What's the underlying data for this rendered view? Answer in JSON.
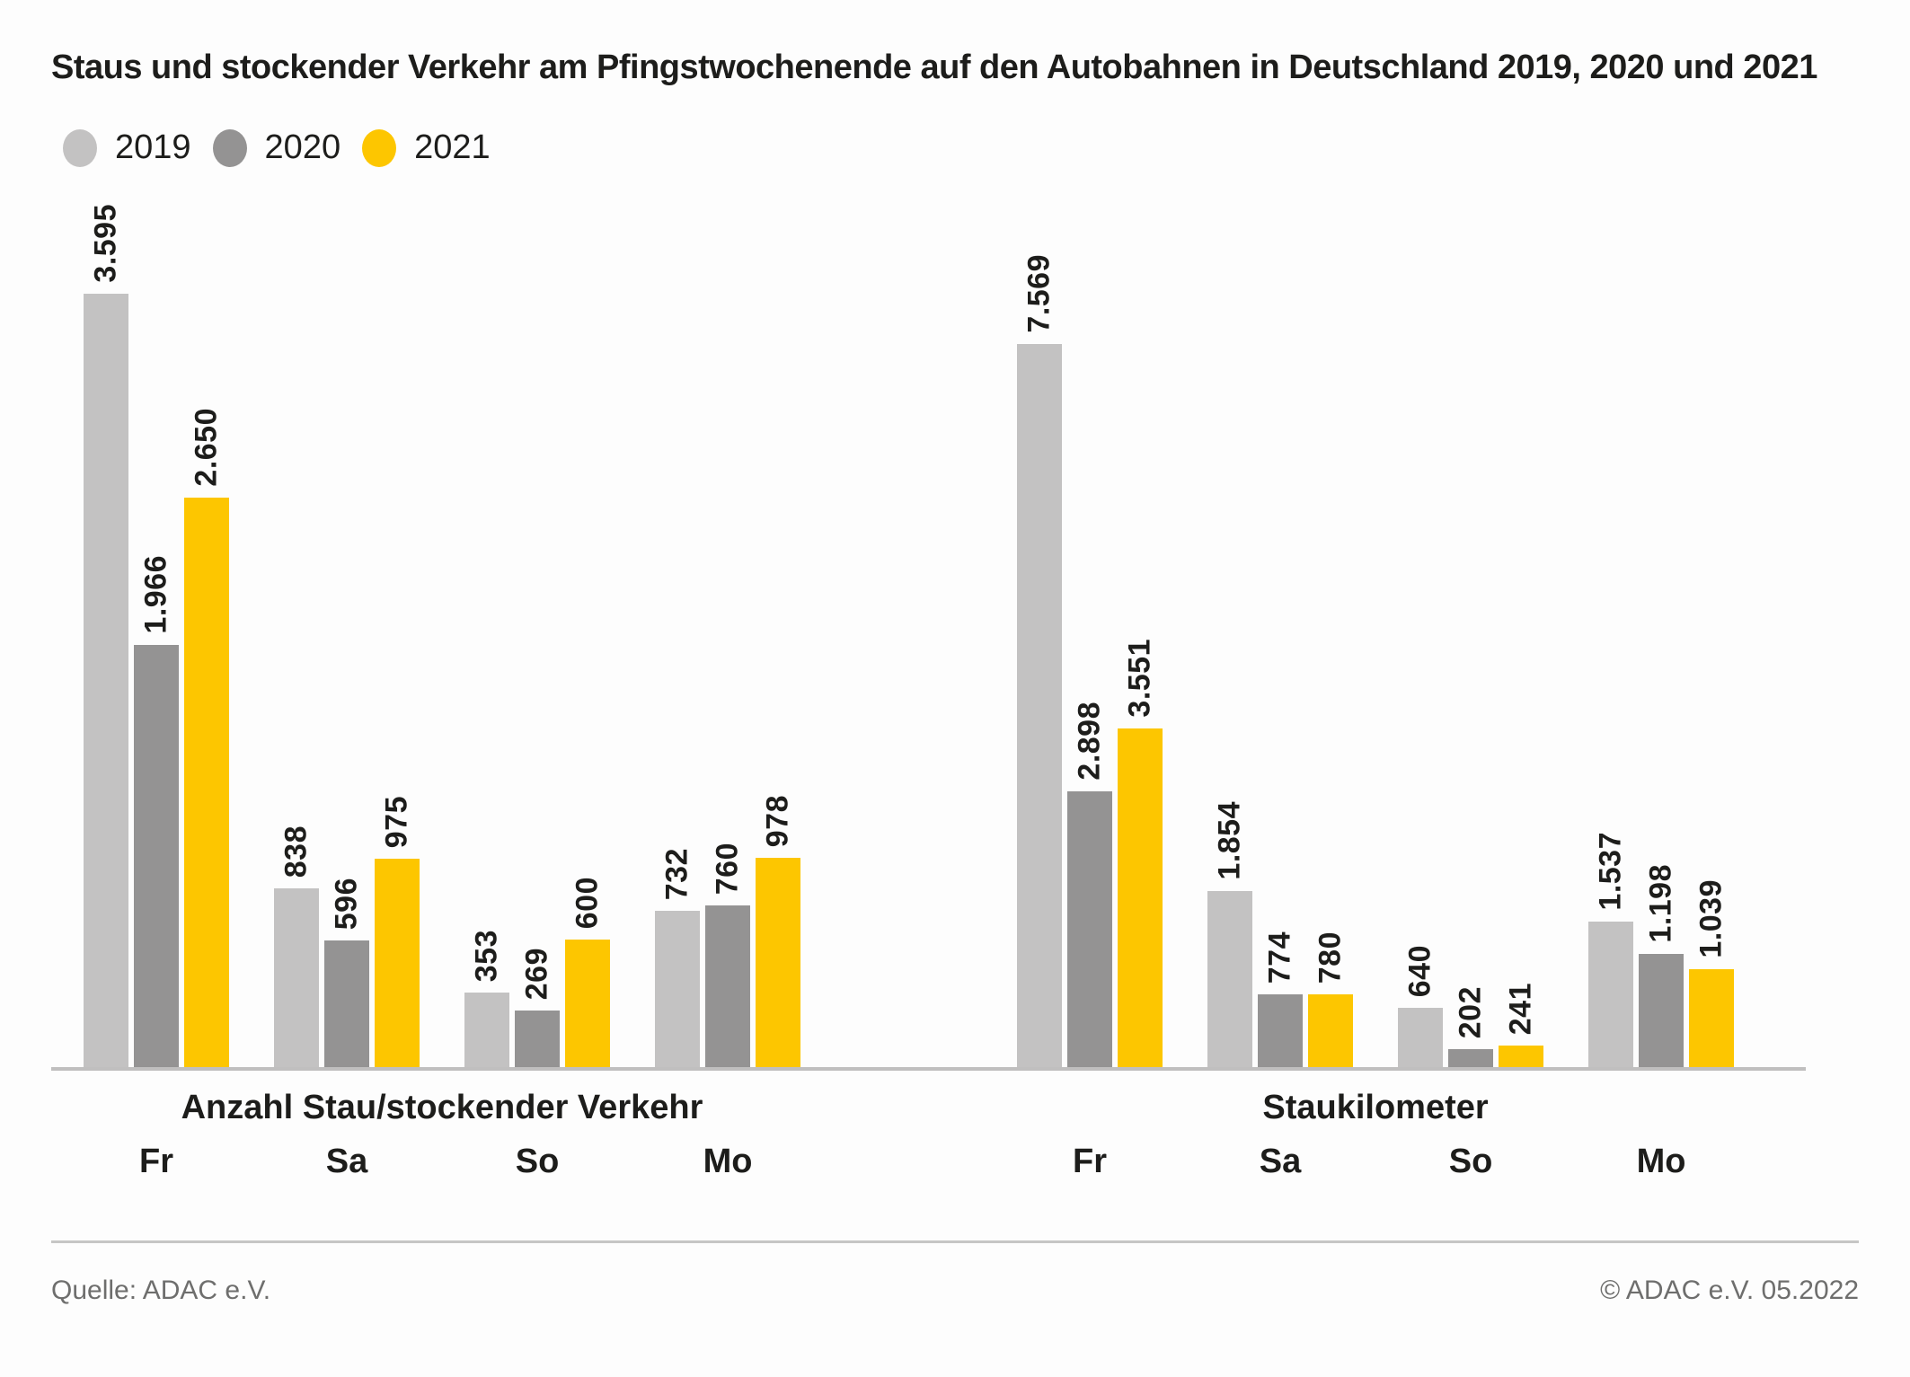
{
  "title": "Staus und stockender Verkehr am Pfingstwochenende auf den Autobahnen in Deutschland 2019, 2020 und 2021",
  "colors": {
    "series_2019": "#c3c2c2",
    "series_2020": "#949393",
    "series_2021": "#fdc600",
    "text": "#1d1d1b",
    "footer_text": "#6e6e6d",
    "axis_line": "#c0bfbf"
  },
  "legend": [
    {
      "label": "2019",
      "color": "#c3c2c2"
    },
    {
      "label": "2020",
      "color": "#949393"
    },
    {
      "label": "2021",
      "color": "#fdc600"
    }
  ],
  "chart_data": [
    {
      "type": "bar",
      "title": "Anzahl Stau/stockender Verkehr",
      "categories": [
        "Fr",
        "Sa",
        "So",
        "Mo"
      ],
      "series": [
        {
          "name": "2019",
          "color": "#c3c2c2",
          "values": [
            3595,
            838,
            353,
            732
          ],
          "labels": [
            "3.595",
            "838",
            "353",
            "732"
          ]
        },
        {
          "name": "2020",
          "color": "#949393",
          "values": [
            1966,
            596,
            269,
            760
          ],
          "labels": [
            "1.966",
            "596",
            "269",
            "760"
          ]
        },
        {
          "name": "2021",
          "color": "#fdc600",
          "values": [
            2650,
            975,
            600,
            978
          ],
          "labels": [
            "2.650",
            "975",
            "600",
            "978"
          ]
        }
      ],
      "xlabel": "",
      "ylabel": "",
      "y_axis_visible": false,
      "grid": false,
      "value_labels": "rotated-90-above-bars",
      "legend_position": "top-left"
    },
    {
      "type": "bar",
      "title": "Staukilometer",
      "categories": [
        "Fr",
        "Sa",
        "So",
        "Mo"
      ],
      "series": [
        {
          "name": "2019",
          "color": "#c3c2c2",
          "values": [
            7569,
            1854,
            640,
            1537
          ],
          "labels": [
            "7.569",
            "1.854",
            "640",
            "1.537"
          ]
        },
        {
          "name": "2020",
          "color": "#949393",
          "values": [
            2898,
            774,
            202,
            1198
          ],
          "labels": [
            "2.898",
            "774",
            "202",
            "1.198"
          ]
        },
        {
          "name": "2021",
          "color": "#fdc600",
          "values": [
            3551,
            780,
            241,
            1039
          ],
          "labels": [
            "3.551",
            "780",
            "241",
            "1.039"
          ]
        }
      ],
      "xlabel": "",
      "ylabel": "",
      "y_axis_visible": false,
      "grid": false,
      "value_labels": "rotated-90-above-bars",
      "legend_position": "top-left"
    }
  ],
  "footer": {
    "source": "Quelle: ADAC e.V.",
    "copyright": "© ADAC e.V. 05.2022"
  }
}
